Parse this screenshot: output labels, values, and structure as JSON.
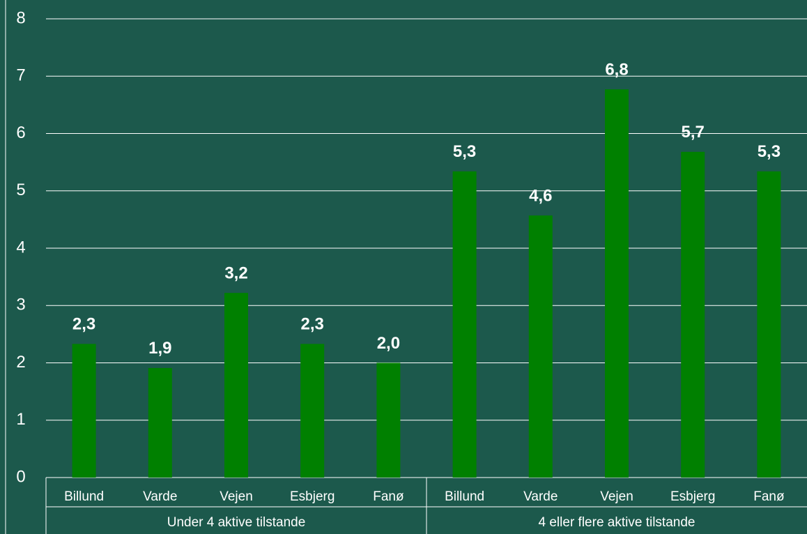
{
  "chart_data": {
    "type": "bar",
    "categories": [
      "Billund",
      "Varde",
      "Vejen",
      "Esbjerg",
      "Fanø",
      "Billund",
      "Varde",
      "Vejen",
      "Esbjerg",
      "Fanø"
    ],
    "groups": [
      "Under 4 aktive tilstande",
      "4 eller flere aktive tilstande"
    ],
    "values": [
      2.33,
      1.91,
      3.22,
      2.33,
      2.0,
      5.34,
      4.57,
      6.77,
      5.68,
      5.34
    ],
    "value_labels": [
      "2,3",
      "1,9",
      "3,2",
      "2,3",
      "2,0",
      "5,3",
      "4,6",
      "6,8",
      "5,7",
      "5,3"
    ],
    "color": "#008000",
    "ylim": [
      0,
      8
    ],
    "yticks": [
      0,
      1,
      2,
      3,
      4,
      5,
      6,
      7,
      8
    ],
    "grid": true
  }
}
